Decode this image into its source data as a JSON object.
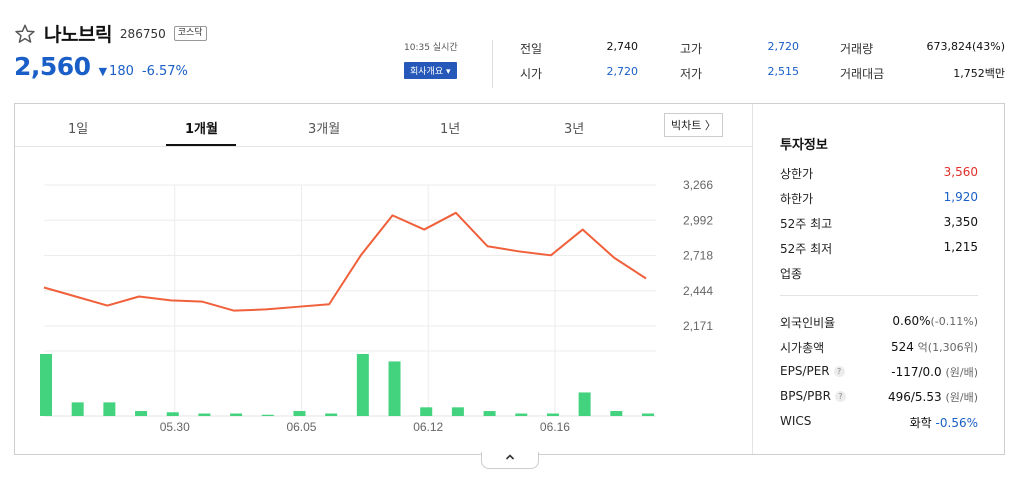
{
  "stock": {
    "name": "나노브릭",
    "code": "286750",
    "market": "코스닥",
    "price": "2,560",
    "change_symbol": "▼",
    "change": "180",
    "change_pct": "-6.57%"
  },
  "realtime": {
    "time_label": "10:35 실시간",
    "company_button": "회사개요 ▾"
  },
  "quotes": {
    "prev_close_label": "전일",
    "prev_close": "2,740",
    "open_label": "시가",
    "open": "2,720",
    "high_label": "고가",
    "high": "2,720",
    "low_label": "저가",
    "low": "2,515",
    "volume_label": "거래량",
    "volume": "673,824(43%)",
    "amount_label": "거래대금",
    "amount": "1,752백만"
  },
  "tabs": [
    "1일",
    "1개월",
    "3개월",
    "1년",
    "3년"
  ],
  "big_chart_label": "빅차트 〉",
  "invest": {
    "title": "투자정보",
    "upper_limit_label": "상한가",
    "upper_limit": "3,560",
    "lower_limit_label": "하한가",
    "lower_limit": "1,920",
    "high52_label": "52주 최고",
    "high52": "3,350",
    "low52_label": "52주 최저",
    "low52": "1,215",
    "sector_label": "업종",
    "foreign_label": "외국인비율",
    "foreign": "0.60%",
    "foreign_change": "(-0.11%)",
    "mcap_label": "시가총액",
    "mcap": "524",
    "mcap_unit": "억(1,306위)",
    "eps_label": "EPS/PER",
    "eps": "-117/0.0",
    "eps_unit": "(원/배)",
    "bps_label": "BPS/PBR",
    "bps": "496/5.53",
    "bps_unit": "(원/배)",
    "wics_label": "WICS",
    "wics": "화학",
    "wics_change": "-0.56%",
    "help_glyph": "?"
  },
  "colors": {
    "up": "#e0302a",
    "down": "#1a5fc7",
    "line": "#f0603a",
    "volume": "#43d37e"
  },
  "chart_data": {
    "type": "line",
    "yticks": [
      "3,266",
      "2,992",
      "2,718",
      "2,444",
      "2,171"
    ],
    "xticks": [
      "05.30",
      "06.05",
      "06.12",
      "06.16"
    ],
    "ylim": [
      2171,
      3266
    ],
    "series": [
      {
        "values": [
          2470,
          2400,
          2330,
          2400,
          2370,
          2360,
          2290,
          2300,
          2320,
          2340,
          2720,
          3030,
          2920,
          3050,
          2790,
          2750,
          2720,
          2920,
          2700,
          2540
        ]
      }
    ],
    "volume": [
      100,
      22,
      22,
      8,
      6,
      4,
      4,
      2,
      8,
      4,
      100,
      88,
      14,
      14,
      8,
      4,
      4,
      38,
      8,
      4
    ]
  }
}
